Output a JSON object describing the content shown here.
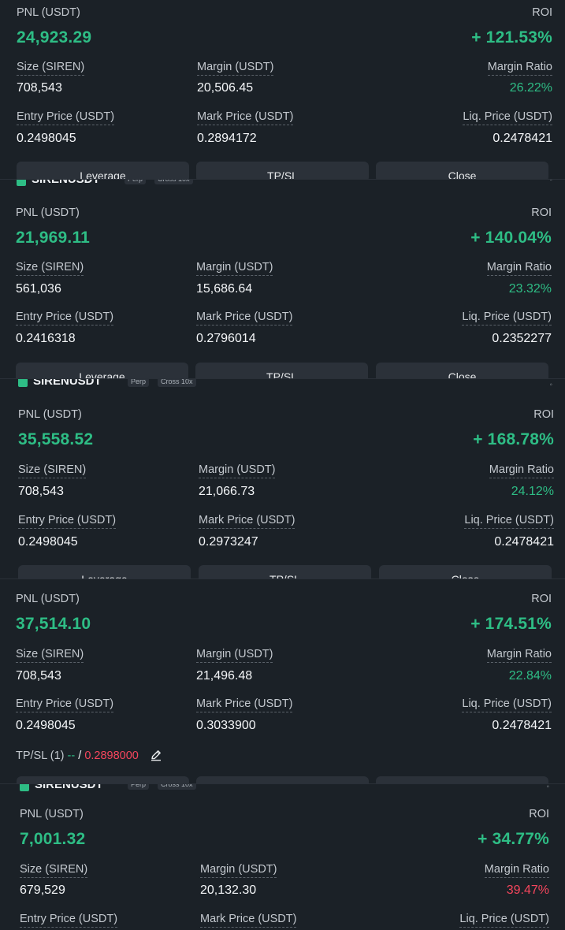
{
  "labels": {
    "pnl": "PNL (USDT)",
    "roi": "ROI",
    "size": "Size (SIREN)",
    "margin": "Margin (USDT)",
    "margin_ratio": "Margin Ratio",
    "entry_price": "Entry Price (USDT)",
    "mark_price": "Mark Price (USDT)",
    "liq_price": "Liq. Price (USDT)",
    "leverage_btn": "Leverage",
    "tpsl_btn": "TP/SL",
    "close_btn": "Close"
  },
  "header": {
    "symbol": "SIRENUSDT",
    "tag_perp": "Perp",
    "tag_cross": "Cross 10x"
  },
  "positions": [
    {
      "pnl": "24,923.29",
      "roi": "+ 121.53%",
      "size": "708,543",
      "margin": "20,506.45",
      "margin_ratio": "26.22%",
      "entry_price": "0.2498045",
      "mark_price": "0.2894172",
      "liq_price": "0.2478421"
    },
    {
      "pnl": "21,969.11",
      "roi": "+ 140.04%",
      "size": "561,036",
      "margin": "15,686.64",
      "margin_ratio": "23.32%",
      "entry_price": "0.2416318",
      "mark_price": "0.2796014",
      "liq_price": "0.2352277"
    },
    {
      "pnl": "35,558.52",
      "roi": "+ 168.78%",
      "size": "708,543",
      "margin": "21,066.73",
      "margin_ratio": "24.12%",
      "entry_price": "0.2498045",
      "mark_price": "0.2973247",
      "liq_price": "0.2478421"
    },
    {
      "pnl": "37,514.10",
      "roi": "+ 174.51%",
      "size": "708,543",
      "margin": "21,496.48",
      "margin_ratio": "22.84%",
      "entry_price": "0.2498045",
      "mark_price": "0.3033900",
      "liq_price": "0.2478421",
      "tpsl_label": "TP/SL (1)",
      "tpsl_tp": "--",
      "tpsl_sep": " / ",
      "tpsl_sl": "0.2898000"
    },
    {
      "pnl": "7,001.32",
      "roi": "+ 34.77%",
      "size": "679,529",
      "margin": "20,132.30",
      "margin_ratio": "39.47%",
      "entry_price": "",
      "mark_price": "",
      "liq_price": ""
    }
  ],
  "colors": {
    "green": "#2ebd85",
    "red": "#f6465d",
    "bg": "#1b2127",
    "button": "#2b3139"
  }
}
